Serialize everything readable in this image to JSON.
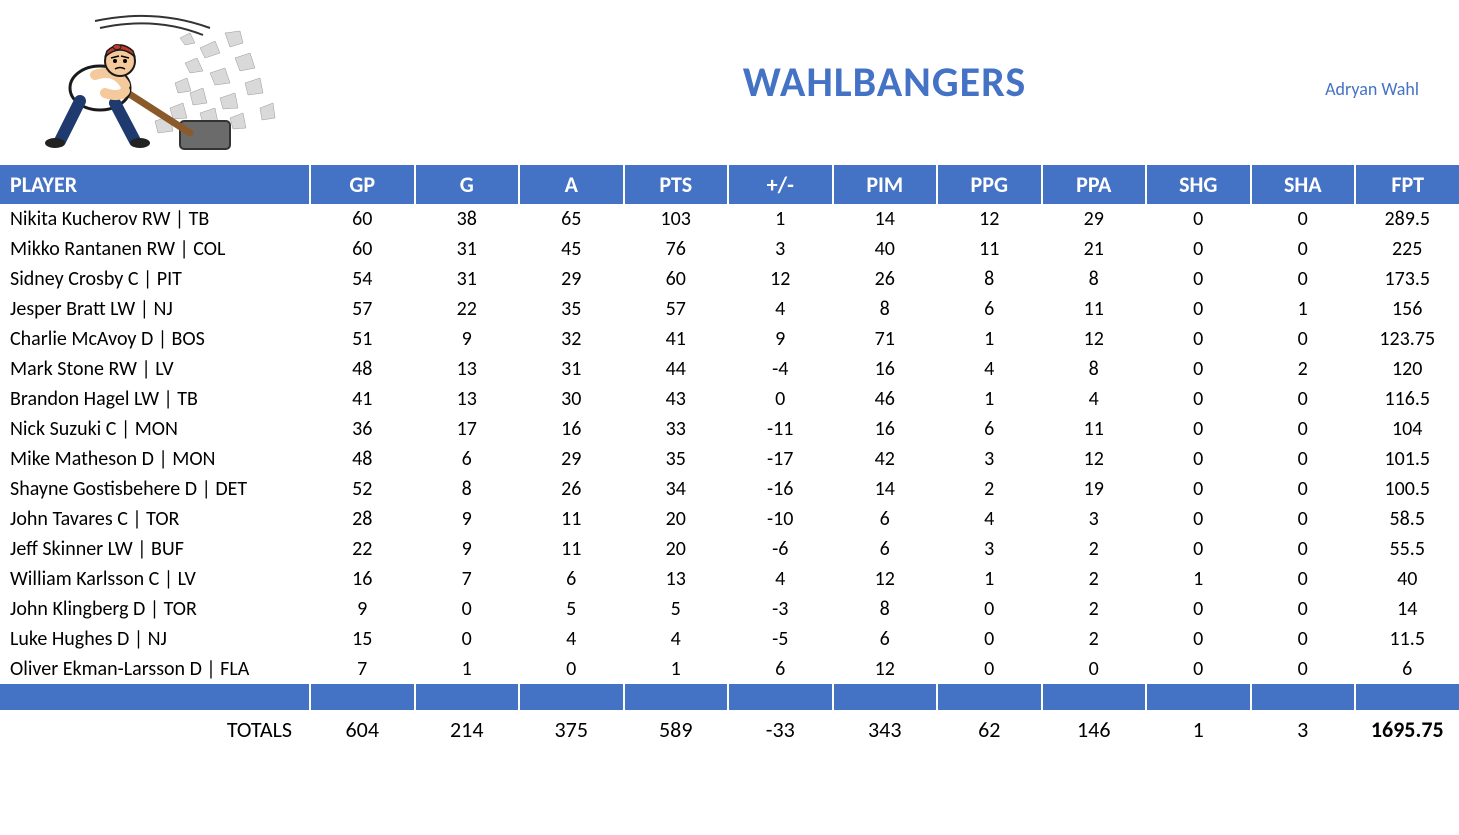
{
  "header": {
    "team_name": "WAHLBANGERS",
    "owner": "Adryan Wahl"
  },
  "colors": {
    "accent": "#4472c4",
    "header_text": "#ffffff",
    "body_text": "#000000",
    "background": "#ffffff"
  },
  "table": {
    "columns": [
      "PLAYER",
      "GP",
      "G",
      "A",
      "PTS",
      "+/-",
      "PIM",
      "PPG",
      "PPA",
      "SHG",
      "SHA",
      "FPT"
    ],
    "rows": [
      {
        "player": "Nikita Kucherov RW | TB",
        "gp": 60,
        "g": 38,
        "a": 65,
        "pts": 103,
        "pm": 1,
        "pim": 14,
        "ppg": 12,
        "ppa": 29,
        "shg": 0,
        "sha": 0,
        "fpt": 289.5
      },
      {
        "player": "Mikko Rantanen RW | COL",
        "gp": 60,
        "g": 31,
        "a": 45,
        "pts": 76,
        "pm": 3,
        "pim": 40,
        "ppg": 11,
        "ppa": 21,
        "shg": 0,
        "sha": 0,
        "fpt": 225
      },
      {
        "player": "Sidney Crosby C | PIT",
        "gp": 54,
        "g": 31,
        "a": 29,
        "pts": 60,
        "pm": 12,
        "pim": 26,
        "ppg": 8,
        "ppa": 8,
        "shg": 0,
        "sha": 0,
        "fpt": 173.5
      },
      {
        "player": "Jesper Bratt LW | NJ",
        "gp": 57,
        "g": 22,
        "a": 35,
        "pts": 57,
        "pm": 4,
        "pim": 8,
        "ppg": 6,
        "ppa": 11,
        "shg": 0,
        "sha": 1,
        "fpt": 156
      },
      {
        "player": "Charlie McAvoy D | BOS",
        "gp": 51,
        "g": 9,
        "a": 32,
        "pts": 41,
        "pm": 9,
        "pim": 71,
        "ppg": 1,
        "ppa": 12,
        "shg": 0,
        "sha": 0,
        "fpt": 123.75
      },
      {
        "player": "Mark Stone RW | LV",
        "gp": 48,
        "g": 13,
        "a": 31,
        "pts": 44,
        "pm": -4,
        "pim": 16,
        "ppg": 4,
        "ppa": 8,
        "shg": 0,
        "sha": 2,
        "fpt": 120
      },
      {
        "player": "Brandon Hagel LW | TB",
        "gp": 41,
        "g": 13,
        "a": 30,
        "pts": 43,
        "pm": 0,
        "pim": 46,
        "ppg": 1,
        "ppa": 4,
        "shg": 0,
        "sha": 0,
        "fpt": 116.5
      },
      {
        "player": "Nick Suzuki C | MON",
        "gp": 36,
        "g": 17,
        "a": 16,
        "pts": 33,
        "pm": -11,
        "pim": 16,
        "ppg": 6,
        "ppa": 11,
        "shg": 0,
        "sha": 0,
        "fpt": 104
      },
      {
        "player": "Mike Matheson D | MON",
        "gp": 48,
        "g": 6,
        "a": 29,
        "pts": 35,
        "pm": -17,
        "pim": 42,
        "ppg": 3,
        "ppa": 12,
        "shg": 0,
        "sha": 0,
        "fpt": 101.5
      },
      {
        "player": "Shayne Gostisbehere D | DET",
        "gp": 52,
        "g": 8,
        "a": 26,
        "pts": 34,
        "pm": -16,
        "pim": 14,
        "ppg": 2,
        "ppa": 19,
        "shg": 0,
        "sha": 0,
        "fpt": 100.5
      },
      {
        "player": "John Tavares C | TOR",
        "gp": 28,
        "g": 9,
        "a": 11,
        "pts": 20,
        "pm": -10,
        "pim": 6,
        "ppg": 4,
        "ppa": 3,
        "shg": 0,
        "sha": 0,
        "fpt": 58.5
      },
      {
        "player": "Jeff Skinner LW | BUF",
        "gp": 22,
        "g": 9,
        "a": 11,
        "pts": 20,
        "pm": -6,
        "pim": 6,
        "ppg": 3,
        "ppa": 2,
        "shg": 0,
        "sha": 0,
        "fpt": 55.5
      },
      {
        "player": "William Karlsson C | LV",
        "gp": 16,
        "g": 7,
        "a": 6,
        "pts": 13,
        "pm": 4,
        "pim": 12,
        "ppg": 1,
        "ppa": 2,
        "shg": 1,
        "sha": 0,
        "fpt": 40
      },
      {
        "player": "John Klingberg D | TOR",
        "gp": 9,
        "g": 0,
        "a": 5,
        "pts": 5,
        "pm": -3,
        "pim": 8,
        "ppg": 0,
        "ppa": 2,
        "shg": 0,
        "sha": 0,
        "fpt": 14
      },
      {
        "player": "Luke Hughes D | NJ",
        "gp": 15,
        "g": 0,
        "a": 4,
        "pts": 4,
        "pm": -5,
        "pim": 6,
        "ppg": 0,
        "ppa": 2,
        "shg": 0,
        "sha": 0,
        "fpt": 11.5
      },
      {
        "player": "Oliver Ekman-Larsson D | FLA",
        "gp": 7,
        "g": 1,
        "a": 0,
        "pts": 1,
        "pm": 6,
        "pim": 12,
        "ppg": 0,
        "ppa": 0,
        "shg": 0,
        "sha": 0,
        "fpt": 6
      }
    ],
    "totals": {
      "label": "TOTALS",
      "gp": 604,
      "g": 214,
      "a": 375,
      "pts": 589,
      "pm": -33,
      "pim": 343,
      "ppg": 62,
      "ppa": 146,
      "shg": 1,
      "sha": 3,
      "fpt": 1695.75
    }
  }
}
